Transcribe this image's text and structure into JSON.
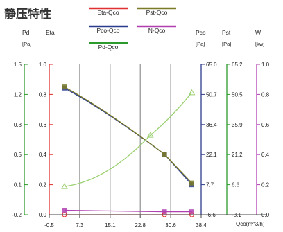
{
  "chart_data": {
    "type": "line",
    "title": "静压特性",
    "legend": [
      {
        "name": "Eta-Qco",
        "color": "#e03030"
      },
      {
        "name": "Pst-Qco",
        "color": "#7a7a28"
      },
      {
        "name": "Pco-Qco",
        "color": "#2c3c8c"
      },
      {
        "name": "N-Qco",
        "color": "#b040b0"
      },
      {
        "name": "Pd-Qco",
        "color": "#2c9a2c"
      }
    ],
    "xlabel": "Qco(m^3/h)",
    "x_ticks": [
      "-0.5",
      "7.3",
      "15.1",
      "22.8",
      "30.6",
      "38.4"
    ],
    "xlim": [
      -0.5,
      38.4
    ],
    "axes": [
      {
        "key": "pd",
        "label": "Pd",
        "unit": "[Pa]",
        "color": "#2c9a2c",
        "ticks": [
          "1.5",
          "1.2",
          "0.8",
          "0.5",
          "0.1",
          "-0.2"
        ],
        "ylim": [
          -0.2,
          1.5
        ]
      },
      {
        "key": "eta",
        "label": "Eta",
        "unit": "",
        "color": "#e03030",
        "ticks": [
          "1.0",
          "0.8",
          "0.6",
          "0.4",
          "0.2",
          "0.0"
        ],
        "ylim": [
          0,
          1
        ]
      },
      {
        "key": "pco",
        "label": "Pco",
        "unit": "[Pa]",
        "color": "#2c3c8c",
        "ticks": [
          "65.0",
          "50.7",
          "36.4",
          "22.1",
          "7.7",
          "-6.6"
        ],
        "ylim": [
          -6.6,
          65.0
        ]
      },
      {
        "key": "pst",
        "label": "Pst",
        "unit": "[Pa]",
        "color": "#2c9a2c",
        "ticks": [
          "65.2",
          "50.5",
          "35.9",
          "21.2",
          "6.6",
          "-8.1"
        ],
        "ylim": [
          -8.1,
          65.2
        ]
      },
      {
        "key": "w",
        "label": "W",
        "unit": "[kw]",
        "color": "#b040b0",
        "ticks": [
          "1.0",
          "0.8",
          "0.6",
          "0.4",
          "0.2",
          "0.0"
        ],
        "ylim": [
          0,
          1
        ]
      }
    ],
    "series": [
      {
        "name": "Pco-Qco",
        "axis": "pco",
        "color": "#2c3c8c",
        "x": [
          3.4,
          29.0,
          36.0
        ],
        "y": [
          53.7,
          22.2,
          7.7
        ],
        "marker": "square"
      },
      {
        "name": "Pst-Qco",
        "axis": "pst",
        "color": "#7a7a28",
        "x": [
          3.4,
          29.0,
          36.0
        ],
        "y": [
          54.2,
          21.4,
          7.4
        ],
        "marker": "square"
      },
      {
        "name": "Pd-Qco",
        "axis": "pd",
        "color": "#9ad070",
        "x": [
          3.4,
          25.4,
          36.0
        ],
        "y": [
          0.12,
          0.7,
          1.18
        ],
        "marker": "triangle"
      },
      {
        "name": "N-Qco",
        "axis": "w",
        "color": "#b040b0",
        "x": [
          3.4,
          29.0,
          36.0
        ],
        "y": [
          0.03,
          0.02,
          0.02
        ],
        "marker": "square"
      },
      {
        "name": "Eta-Qco",
        "axis": "eta",
        "color": "#e03030",
        "x": [
          3.4,
          29.0,
          36.0
        ],
        "y": [
          0.0,
          0.0,
          0.0
        ],
        "marker": "circle"
      }
    ],
    "grid": true,
    "grid_x": true,
    "grid_y": false,
    "legend_position": "top"
  }
}
